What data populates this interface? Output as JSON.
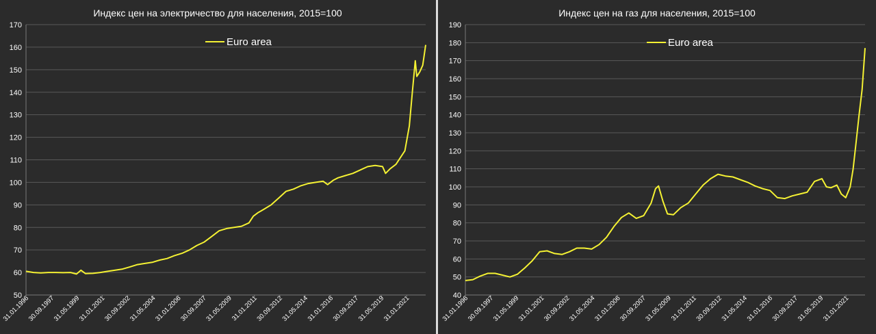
{
  "chart_data": [
    {
      "type": "line",
      "title": "Индекс цен на электричество для населения, 2015=100",
      "ylim": [
        50,
        170
      ],
      "yticks": [
        "50",
        "60",
        "70",
        "80",
        "90",
        "100",
        "110",
        "120",
        "130",
        "140",
        "150",
        "160",
        "170"
      ],
      "xticks": [
        "31.01.1996",
        "30.09.1997",
        "31.05.1999",
        "31.01.2001",
        "30.09.2002",
        "31.05.2004",
        "31.01.2006",
        "30.09.2007",
        "31.05.2009",
        "31.01.2011",
        "30.09.2012",
        "31.05.2014",
        "31.01.2016",
        "30.09.2017",
        "31.05.2019",
        "31.01.2021"
      ],
      "xlim": [
        1996.0,
        2022.9
      ],
      "grid": true,
      "legend_position": "top-center",
      "series": [
        {
          "name": "Euro area",
          "color": "#f5f233",
          "x": [
            1996.0,
            1996.5,
            1997.0,
            1997.5,
            1998.0,
            1998.5,
            1999.0,
            1999.4,
            1999.7,
            2000.0,
            2000.5,
            2001.0,
            2001.5,
            2002.0,
            2002.5,
            2003.0,
            2003.5,
            2004.0,
            2004.5,
            2005.0,
            2005.5,
            2006.0,
            2006.5,
            2007.0,
            2007.5,
            2008.0,
            2008.5,
            2009.0,
            2009.5,
            2010.0,
            2010.5,
            2011.0,
            2011.3,
            2011.6,
            2012.0,
            2012.5,
            2013.0,
            2013.5,
            2014.0,
            2014.5,
            2015.0,
            2015.5,
            2016.0,
            2016.3,
            2016.7,
            2017.0,
            2017.5,
            2018.0,
            2018.5,
            2019.0,
            2019.5,
            2020.0,
            2020.2,
            2020.5,
            2020.9,
            2021.2,
            2021.5,
            2021.8,
            2022.0,
            2022.2,
            2022.3,
            2022.5,
            2022.7,
            2022.9
          ],
          "y": [
            60.5,
            60.0,
            59.8,
            60.0,
            60.0,
            59.9,
            60.0,
            59.3,
            61.0,
            59.5,
            59.6,
            60.0,
            60.5,
            61.0,
            61.5,
            62.5,
            63.5,
            64.0,
            64.5,
            65.5,
            66.2,
            67.5,
            68.5,
            70.0,
            72.0,
            73.5,
            76.0,
            78.5,
            79.5,
            80.0,
            80.5,
            82.0,
            85.0,
            86.5,
            88.0,
            90.0,
            93.0,
            96.0,
            97.0,
            98.5,
            99.5,
            100.0,
            100.5,
            99.0,
            101.0,
            102.0,
            103.0,
            104.0,
            105.5,
            107.0,
            107.5,
            107.0,
            104.0,
            106.0,
            108.0,
            111.0,
            114.0,
            125.0,
            140.0,
            154.0,
            147.0,
            149.0,
            152.0,
            161.0
          ]
        }
      ]
    },
    {
      "type": "line",
      "title": "Индекс цен на газ для населения, 2015=100",
      "ylim": [
        40,
        190
      ],
      "yticks": [
        "40",
        "50",
        "60",
        "70",
        "80",
        "90",
        "100",
        "110",
        "120",
        "130",
        "140",
        "150",
        "160",
        "170",
        "180",
        "190"
      ],
      "xticks": [
        "31.01.1996",
        "30.09.1997",
        "31.05.1999",
        "31.01.2001",
        "30.09.2002",
        "31.05.2004",
        "31.01.2006",
        "30.09.2007",
        "31.05.2009",
        "31.01.2011",
        "30.09.2012",
        "31.05.2014",
        "31.01.2016",
        "30.09.2017",
        "31.05.2019",
        "31.01.2021"
      ],
      "xlim": [
        1996.0,
        2022.9
      ],
      "grid": true,
      "legend_position": "top-center",
      "series": [
        {
          "name": "Euro area",
          "color": "#f5f233",
          "x": [
            1996.0,
            1996.5,
            1997.0,
            1997.5,
            1998.0,
            1998.5,
            1999.0,
            1999.5,
            2000.0,
            2000.5,
            2001.0,
            2001.5,
            2002.0,
            2002.5,
            2003.0,
            2003.5,
            2004.0,
            2004.5,
            2005.0,
            2005.5,
            2006.0,
            2006.5,
            2007.0,
            2007.5,
            2008.0,
            2008.5,
            2008.8,
            2009.0,
            2009.3,
            2009.6,
            2010.0,
            2010.5,
            2011.0,
            2011.5,
            2012.0,
            2012.5,
            2013.0,
            2013.5,
            2014.0,
            2014.5,
            2015.0,
            2015.5,
            2016.0,
            2016.5,
            2017.0,
            2017.5,
            2018.0,
            2018.5,
            2019.0,
            2019.5,
            2020.0,
            2020.3,
            2020.6,
            2021.0,
            2021.3,
            2021.6,
            2021.9,
            2022.1,
            2022.3,
            2022.5,
            2022.7,
            2022.9
          ],
          "y": [
            48.0,
            48.5,
            50.5,
            52.0,
            52.0,
            51.0,
            50.0,
            51.5,
            55.0,
            59.0,
            64.0,
            64.5,
            63.0,
            62.5,
            64.0,
            66.0,
            66.0,
            65.5,
            68.0,
            72.0,
            78.0,
            83.0,
            85.5,
            82.5,
            84.0,
            91.0,
            99.0,
            100.5,
            92.0,
            85.0,
            84.5,
            88.5,
            91.0,
            96.0,
            101.0,
            104.5,
            107.0,
            106.0,
            105.5,
            104.0,
            102.5,
            100.5,
            99.0,
            98.0,
            94.0,
            93.5,
            95.0,
            96.0,
            97.0,
            103.0,
            104.5,
            100.0,
            99.5,
            101.0,
            96.0,
            94.0,
            100.0,
            110.0,
            125.0,
            140.0,
            154.0,
            177.0
          ]
        }
      ]
    }
  ]
}
